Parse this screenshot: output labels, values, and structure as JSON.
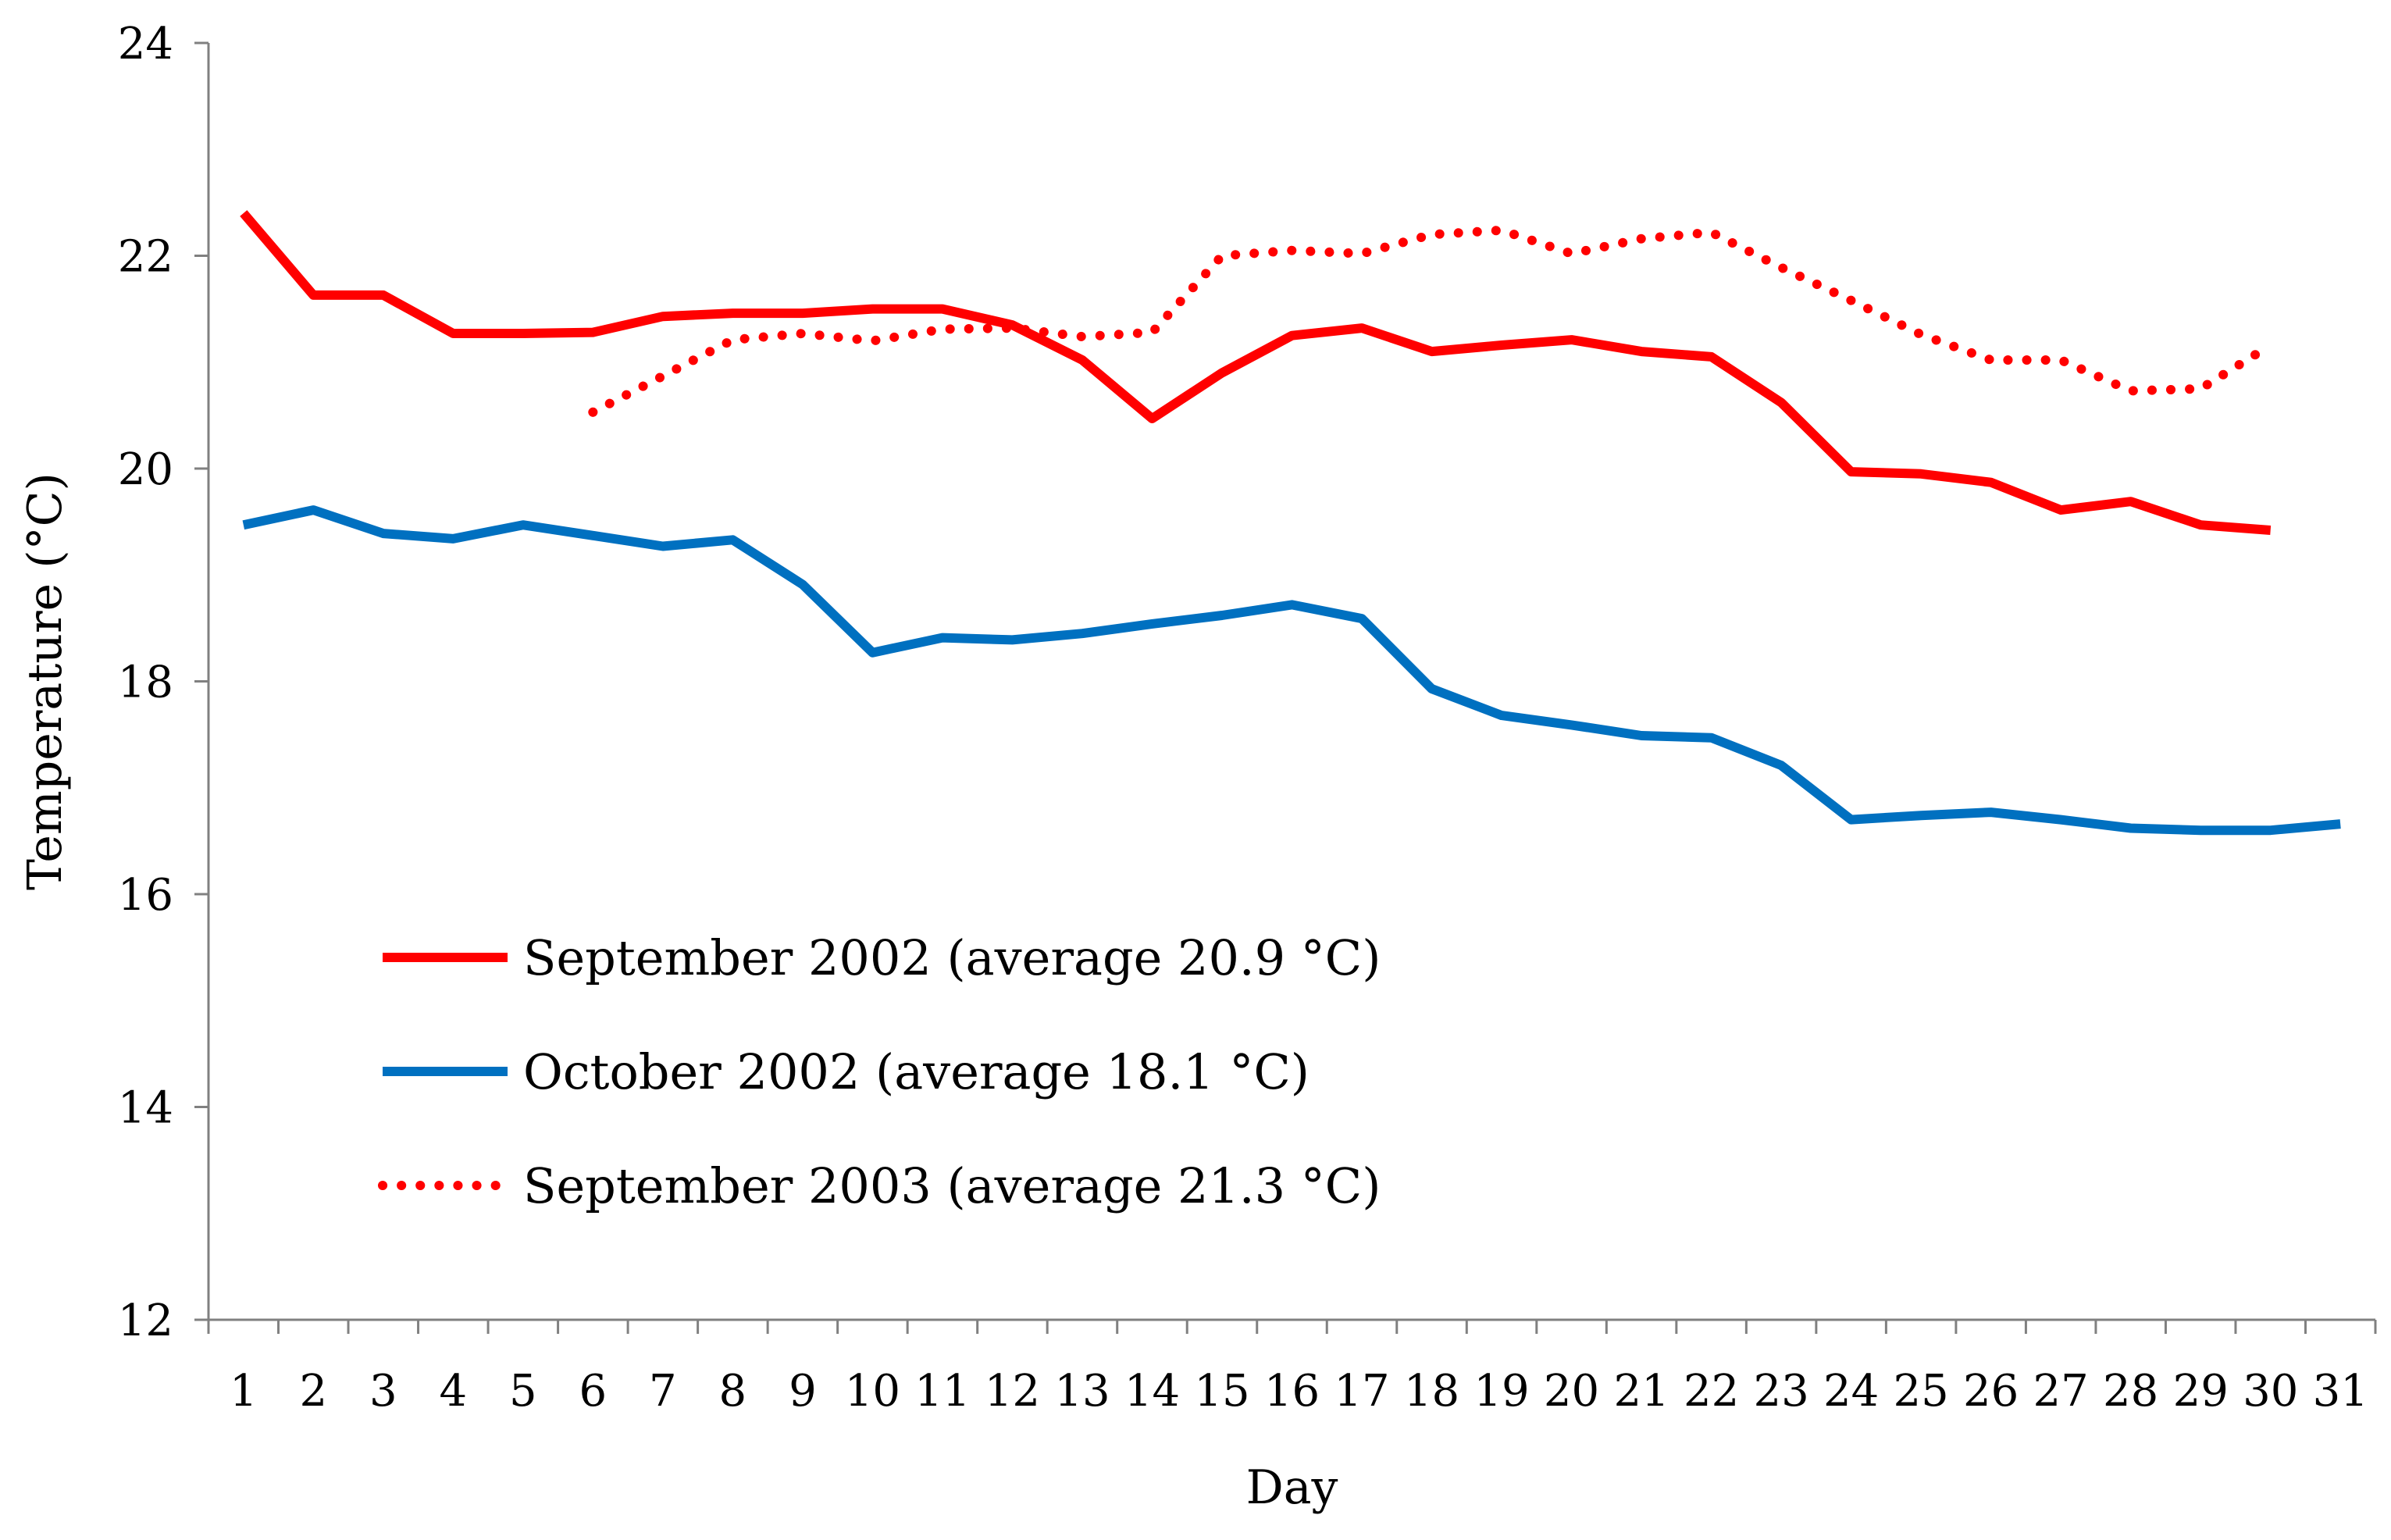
{
  "chart_data": {
    "type": "line",
    "title": "",
    "xlabel": "Day",
    "ylabel": "Temperature (°C)",
    "ylim": [
      12,
      24
    ],
    "yticks": [
      12,
      14,
      16,
      18,
      20,
      22,
      24
    ],
    "categories": [
      "1",
      "2",
      "3",
      "4",
      "5",
      "6",
      "7",
      "8",
      "9",
      "10",
      "11",
      "12",
      "13",
      "14",
      "15",
      "16",
      "17",
      "18",
      "19",
      "20",
      "21",
      "22",
      "23",
      "24",
      "25",
      "26",
      "27",
      "28",
      "29",
      "30",
      "31"
    ],
    "grid": false,
    "legend_position": "lower-left",
    "series": [
      {
        "name": "September 2002 (average 20.9 °C)",
        "color": "#ff0000",
        "style": "solid",
        "values": [
          22.4,
          21.63,
          21.63,
          21.27,
          21.27,
          21.28,
          21.43,
          21.46,
          21.46,
          21.5,
          21.5,
          21.35,
          21.02,
          20.47,
          20.9,
          21.25,
          21.32,
          21.1,
          21.16,
          21.21,
          21.1,
          21.05,
          20.62,
          19.97,
          19.95,
          19.87,
          19.61,
          19.69,
          19.47,
          19.42,
          null
        ]
      },
      {
        "name": "October 2002 (average 18.1 °C)",
        "color": "#0070c0",
        "style": "solid",
        "values": [
          19.47,
          19.61,
          19.39,
          19.34,
          19.47,
          19.37,
          19.27,
          19.33,
          18.91,
          18.27,
          18.41,
          18.39,
          18.45,
          18.54,
          18.62,
          18.72,
          18.59,
          17.93,
          17.68,
          17.59,
          17.49,
          17.47,
          17.21,
          16.7,
          16.74,
          16.77,
          16.7,
          16.62,
          16.6,
          16.6,
          16.66
        ]
      },
      {
        "name": "September 2003 (average 21.3 °C)",
        "color": "#ff0000",
        "style": "dotted",
        "values": [
          null,
          null,
          null,
          null,
          null,
          20.53,
          20.87,
          21.21,
          21.27,
          21.2,
          21.31,
          21.32,
          21.24,
          21.28,
          22.0,
          22.05,
          22.02,
          22.2,
          22.24,
          22.02,
          22.16,
          22.22,
          21.89,
          21.58,
          21.26,
          21.02,
          21.02,
          20.73,
          20.75,
          21.16,
          null
        ]
      }
    ]
  }
}
